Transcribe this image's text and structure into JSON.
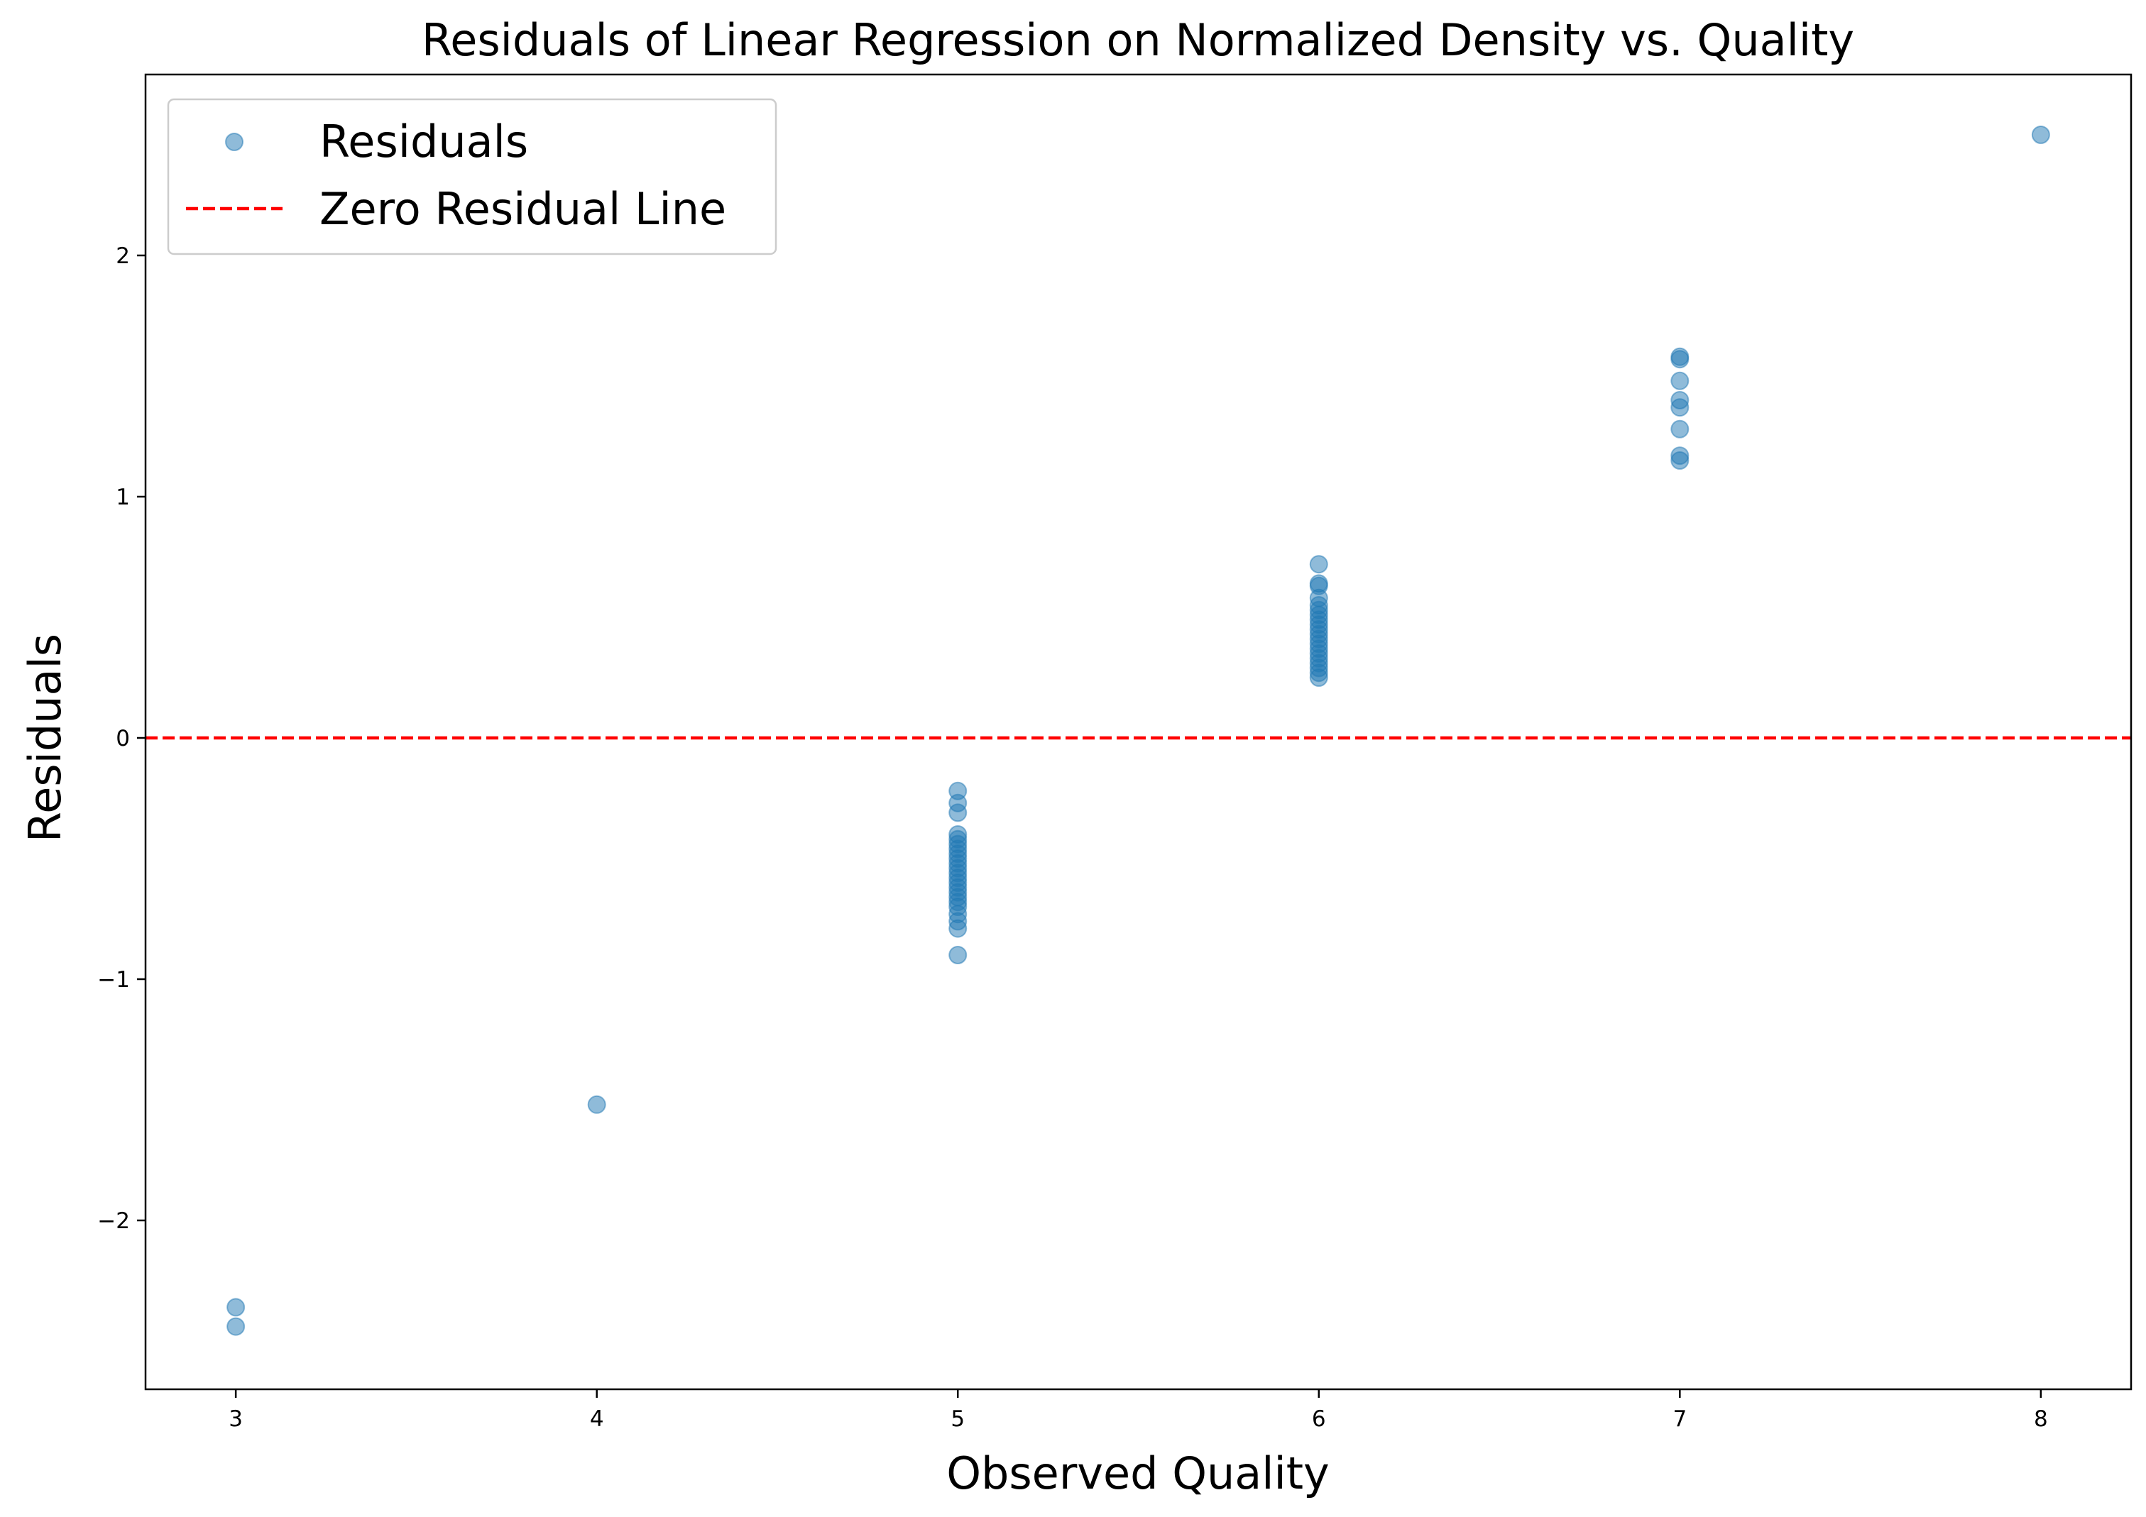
{
  "chart_data": {
    "type": "scatter",
    "title": "Residuals of Linear Regression on Normalized Density vs. Quality",
    "xlabel": "Observed Quality",
    "ylabel": "Residuals",
    "xlim": [
      2.75,
      8.25
    ],
    "ylim": [
      -2.7,
      2.75
    ],
    "xticks": [
      3,
      4,
      5,
      6,
      7,
      8
    ],
    "yticks": [
      -2,
      -1,
      0,
      1,
      2
    ],
    "ytick_labels": [
      "−2",
      "−1",
      "0",
      "1",
      "2"
    ],
    "xtick_labels": [
      "3",
      "4",
      "5",
      "6",
      "7",
      "8"
    ],
    "grid": false,
    "legend_position": "top-left",
    "series": [
      {
        "name": "Residuals",
        "kind": "scatter",
        "color": "#1f77b4",
        "points": [
          [
            3,
            -2.36
          ],
          [
            3,
            -2.44
          ],
          [
            4,
            -1.52
          ],
          [
            5,
            -0.22
          ],
          [
            5,
            -0.27
          ],
          [
            5,
            -0.31
          ],
          [
            5,
            -0.4
          ],
          [
            5,
            -0.42
          ],
          [
            5,
            -0.44
          ],
          [
            5,
            -0.46
          ],
          [
            5,
            -0.48
          ],
          [
            5,
            -0.5
          ],
          [
            5,
            -0.52
          ],
          [
            5,
            -0.54
          ],
          [
            5,
            -0.56
          ],
          [
            5,
            -0.58
          ],
          [
            5,
            -0.6
          ],
          [
            5,
            -0.62
          ],
          [
            5,
            -0.64
          ],
          [
            5,
            -0.66
          ],
          [
            5,
            -0.68
          ],
          [
            5,
            -0.7
          ],
          [
            5,
            -0.73
          ],
          [
            5,
            -0.76
          ],
          [
            5,
            -0.79
          ],
          [
            5,
            -0.9
          ],
          [
            6,
            0.25
          ],
          [
            6,
            0.27
          ],
          [
            6,
            0.29
          ],
          [
            6,
            0.31
          ],
          [
            6,
            0.33
          ],
          [
            6,
            0.35
          ],
          [
            6,
            0.37
          ],
          [
            6,
            0.39
          ],
          [
            6,
            0.41
          ],
          [
            6,
            0.43
          ],
          [
            6,
            0.45
          ],
          [
            6,
            0.47
          ],
          [
            6,
            0.49
          ],
          [
            6,
            0.51
          ],
          [
            6,
            0.53
          ],
          [
            6,
            0.55
          ],
          [
            6,
            0.58
          ],
          [
            6,
            0.63
          ],
          [
            6,
            0.64
          ],
          [
            6,
            0.72
          ],
          [
            7,
            1.15
          ],
          [
            7,
            1.17
          ],
          [
            7,
            1.28
          ],
          [
            7,
            1.37
          ],
          [
            7,
            1.4
          ],
          [
            7,
            1.48
          ],
          [
            7,
            1.57
          ],
          [
            7,
            1.58
          ],
          [
            8,
            2.5
          ]
        ]
      },
      {
        "name": "Zero Residual Line",
        "kind": "hline",
        "y": 0,
        "color": "#ff0000",
        "style": "dashed"
      }
    ]
  }
}
